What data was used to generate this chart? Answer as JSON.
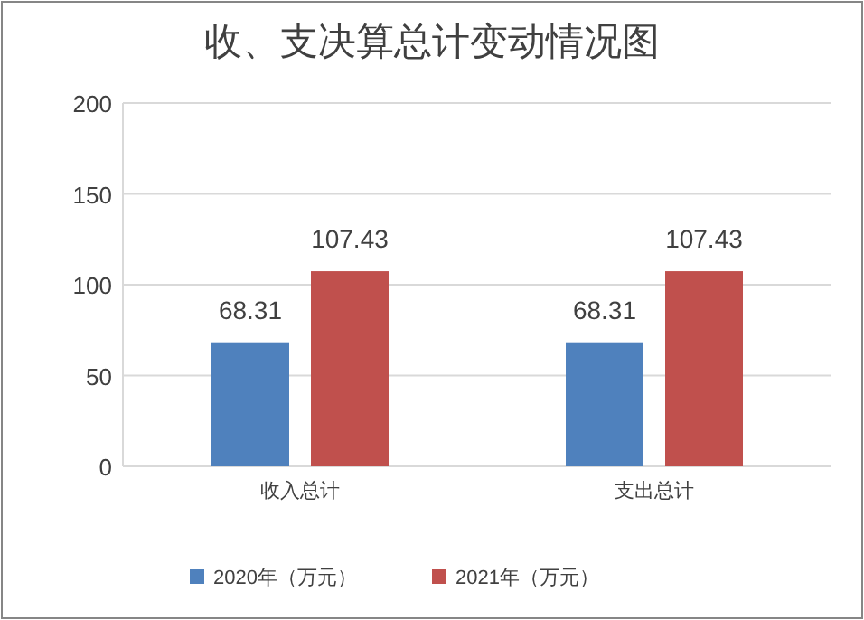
{
  "chart_data": {
    "type": "bar",
    "title": "收、支决算总计变动情况图",
    "categories": [
      "收入总计",
      "支出总计"
    ],
    "series": [
      {
        "name": "2020年（万元）",
        "color": "#4f81bd",
        "values": [
          68.31,
          68.31
        ]
      },
      {
        "name": "2021年（万元）",
        "color": "#c0504d",
        "values": [
          107.43,
          107.43
        ]
      }
    ],
    "ylim": [
      0,
      200
    ],
    "yticks": [
      0,
      50,
      100,
      150,
      200
    ],
    "grid": "y",
    "data_labels": true,
    "legend": "bottom"
  }
}
